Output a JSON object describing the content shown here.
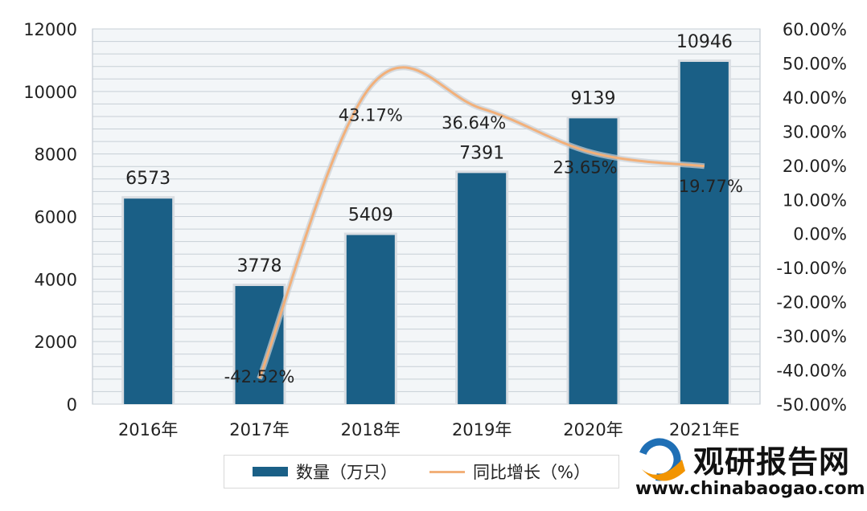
{
  "chart_data": {
    "type": "bar",
    "categories": [
      "2016年",
      "2017年",
      "2018年",
      "2019年",
      "2020年",
      "2021年E"
    ],
    "series": [
      {
        "name": "数量（万只）",
        "type": "bar",
        "axis": "left",
        "values": [
          6573,
          3778,
          5409,
          7391,
          9139,
          10946
        ],
        "labels": [
          "6573",
          "3778",
          "5409",
          "7391",
          "9139",
          "10946"
        ],
        "color": "#1a5f86"
      },
      {
        "name": "同比增长（%）",
        "type": "line",
        "axis": "right",
        "values": [
          null,
          -42.52,
          43.17,
          36.64,
          23.65,
          19.77
        ],
        "labels": [
          "",
          "-42.52%",
          "43.17%",
          "36.64%",
          "23.65%",
          "19.77%"
        ],
        "color": "#f2b07a"
      }
    ],
    "y_left": {
      "min": 0,
      "max": 12000,
      "ticks": [
        "0",
        "2000",
        "4000",
        "6000",
        "8000",
        "10000",
        "12000"
      ]
    },
    "y_right": {
      "min": -50,
      "max": 60,
      "ticks": [
        "-50.00%",
        "-40.00%",
        "-30.00%",
        "-20.00%",
        "-10.00%",
        "0.00%",
        "10.00%",
        "20.00%",
        "30.00%",
        "40.00%",
        "50.00%",
        "60.00%"
      ]
    },
    "grid": true,
    "legend_position": "bottom"
  },
  "colors": {
    "bar": "#1a5f86",
    "line": "#f2b07a",
    "plot_background": "#f3f6f8",
    "gridline": "#c7cfd6"
  },
  "brand": {
    "name": "观研报告网",
    "url": "www.chinabaogao.com"
  }
}
